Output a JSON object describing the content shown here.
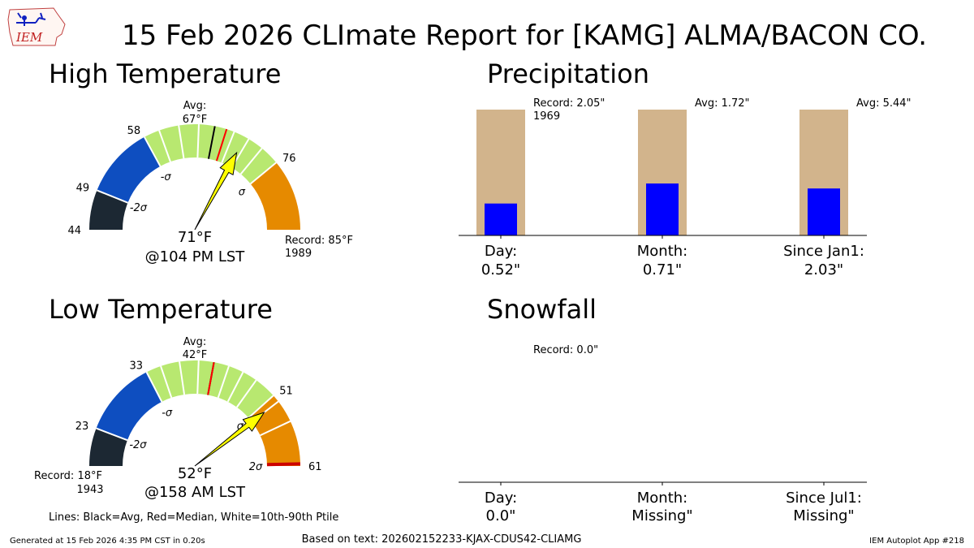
{
  "title": "15 Feb 2026 CLImate Report for [KAMG] ALMA/BACON CO.",
  "logo_text": "IEM",
  "footer": {
    "left": "Generated at 15 Feb 2026 4:35 PM CST in 0.20s",
    "center": "Based on text: 202602152233-KJAX-CDUS42-CLIAMG",
    "right": "IEM Autoplot App #218"
  },
  "legend_note": "Lines: Black=Avg, Red=Median, White=10th-90th Ptile",
  "colors": {
    "dark": "#1c2833",
    "blue": "#0e4ec0",
    "green": "#b8e870",
    "orange": "#e68a00",
    "record_bar": "#d2b48c",
    "obs_bar": "#0000ff",
    "needle": "#ffff00",
    "median_line": "#ff0000",
    "avg_line": "#000000",
    "record_line": "#cc0000"
  },
  "chart_data": [
    {
      "type": "gauge",
      "title": "High Temperature",
      "range": [
        44,
        85
      ],
      "bands": [
        {
          "from": 44,
          "to": 49,
          "color": "dark"
        },
        {
          "from": 49,
          "to": 58,
          "color": "blue"
        },
        {
          "from": 58,
          "to": 76,
          "color": "green"
        },
        {
          "from": 76,
          "to": 85,
          "color": "orange"
        }
      ],
      "tick_labels": [
        "44",
        "49",
        "58",
        "76"
      ],
      "tick_values": [
        44,
        49,
        58,
        76
      ],
      "sigma_labels": [
        {
          "text": "-2σ",
          "value": 49
        },
        {
          "text": "-σ",
          "value": 58
        },
        {
          "text": "σ",
          "value": 76
        }
      ],
      "ptile_lines": [
        60,
        62.5,
        65,
        67,
        69.5,
        71.5,
        73.5
      ],
      "avg_value": 67,
      "median_value": 68.5,
      "avg_label": "Avg:",
      "avg_text": "67°F",
      "needle_value": 71,
      "value_text": "71°F",
      "time_text": "@104 PM LST",
      "record_text": "Record: 85°F",
      "record_year": "1989"
    },
    {
      "type": "gauge",
      "title": "Low Temperature",
      "range": [
        18,
        61
      ],
      "bands": [
        {
          "from": 18,
          "to": 23,
          "color": "dark"
        },
        {
          "from": 23,
          "to": 33,
          "color": "blue"
        },
        {
          "from": 33,
          "to": 51,
          "color": "green"
        },
        {
          "from": 51,
          "to": 61,
          "color": "orange"
        }
      ],
      "tick_labels": [
        "23",
        "33",
        "51",
        "61"
      ],
      "tick_values": [
        23,
        33,
        51,
        61
      ],
      "sigma_labels": [
        {
          "text": "-2σ",
          "value": 23
        },
        {
          "text": "-σ",
          "value": 33
        },
        {
          "text": "σ",
          "value": 51
        },
        {
          "text": "2σ",
          "value": 61
        }
      ],
      "ptile_lines": [
        35,
        37.5,
        40,
        44,
        46,
        48,
        52,
        55
      ],
      "median_value": 42,
      "avg_value": 42,
      "avg_label": "Avg:",
      "avg_text": "42°F",
      "needle_value": 52,
      "value_text": "52°F",
      "time_text": "@158 AM LST",
      "record_text": "Record: 18°F",
      "record_year": "1943",
      "record_high_marker": 61
    },
    {
      "type": "bar",
      "title": "Precipitation",
      "categories": [
        "Day:",
        "Month:",
        "Since Jan1:"
      ],
      "value_labels": [
        "0.52\"",
        "0.71\"",
        "2.03\""
      ],
      "observed": [
        0.52,
        0.71,
        2.03
      ],
      "reference": [
        2.05,
        1.72,
        5.44
      ],
      "reference_labels": [
        "Record: 2.05\"",
        "Avg: 1.72\"",
        "Avg: 5.44\""
      ],
      "reference_sub": [
        "1969",
        "",
        ""
      ]
    },
    {
      "type": "bar",
      "title": "Snowfall",
      "categories": [
        "Day:",
        "Month:",
        "Since Jul1:"
      ],
      "value_labels": [
        "0.0\"",
        "Missing\"",
        "Missing\""
      ],
      "observed": [
        0.0,
        null,
        null
      ],
      "reference": [
        0.0,
        null,
        null
      ],
      "reference_labels": [
        "Record: 0.0\"",
        "",
        ""
      ],
      "reference_sub": [
        "",
        "",
        ""
      ]
    }
  ]
}
